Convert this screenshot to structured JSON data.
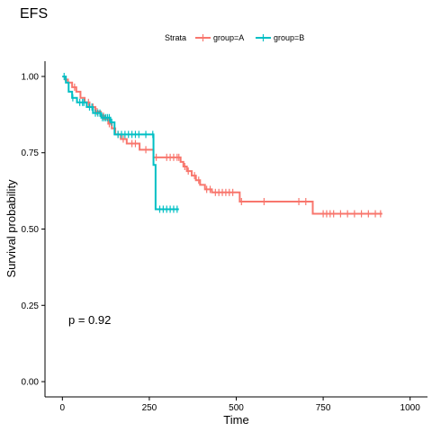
{
  "chart_data": {
    "type": "line",
    "subtype": "kaplan-meier step",
    "title": "EFS",
    "xlabel": "Time",
    "ylabel": "Survival probability",
    "xlim": [
      -50,
      1050
    ],
    "ylim": [
      -0.05,
      1.05
    ],
    "xticks": [
      0,
      250,
      500,
      750,
      1000
    ],
    "yticks": [
      0.0,
      0.25,
      0.5,
      0.75,
      1.0
    ],
    "xtick_labels": [
      "0",
      "250",
      "500",
      "750",
      "1000"
    ],
    "ytick_labels": [
      "0.00",
      "0.25",
      "0.50",
      "0.75",
      "1.00"
    ],
    "grid": false,
    "legend": {
      "position": "top",
      "title": "Strata",
      "entries": [
        "group=A",
        "group=B"
      ]
    },
    "annotation": "p = 0.92",
    "series": [
      {
        "name": "group=A",
        "color": "#F8766D",
        "steps": [
          [
            0,
            1.0
          ],
          [
            8,
            0.99
          ],
          [
            16,
            0.98
          ],
          [
            28,
            0.965
          ],
          [
            40,
            0.95
          ],
          [
            52,
            0.93
          ],
          [
            64,
            0.915
          ],
          [
            78,
            0.9
          ],
          [
            95,
            0.885
          ],
          [
            110,
            0.87
          ],
          [
            122,
            0.86
          ],
          [
            132,
            0.845
          ],
          [
            142,
            0.83
          ],
          [
            152,
            0.81
          ],
          [
            168,
            0.795
          ],
          [
            185,
            0.78
          ],
          [
            222,
            0.76
          ],
          [
            262,
            0.735
          ],
          [
            340,
            0.72
          ],
          [
            348,
            0.705
          ],
          [
            358,
            0.69
          ],
          [
            372,
            0.675
          ],
          [
            384,
            0.66
          ],
          [
            396,
            0.645
          ],
          [
            410,
            0.63
          ],
          [
            430,
            0.62
          ],
          [
            510,
            0.59
          ],
          [
            720,
            0.55
          ],
          [
            920,
            0.55
          ]
        ],
        "censor_times": [
          35,
          75,
          88,
          100,
          118,
          135,
          160,
          175,
          200,
          210,
          240,
          270,
          300,
          310,
          320,
          330,
          335,
          352,
          362,
          380,
          392,
          415,
          425,
          440,
          450,
          460,
          470,
          480,
          490,
          515,
          580,
          680,
          700,
          750,
          760,
          770,
          780,
          800,
          820,
          840,
          860,
          880,
          900,
          915
        ]
      },
      {
        "name": "group=B",
        "color": "#00BFC4",
        "steps": [
          [
            0,
            1.0
          ],
          [
            10,
            0.98
          ],
          [
            18,
            0.95
          ],
          [
            28,
            0.93
          ],
          [
            42,
            0.915
          ],
          [
            70,
            0.9
          ],
          [
            88,
            0.88
          ],
          [
            112,
            0.865
          ],
          [
            138,
            0.85
          ],
          [
            150,
            0.81
          ],
          [
            262,
            0.71
          ],
          [
            268,
            0.565
          ],
          [
            335,
            0.565
          ]
        ],
        "censor_times": [
          5,
          30,
          50,
          58,
          62,
          78,
          85,
          95,
          102,
          108,
          115,
          120,
          125,
          130,
          135,
          142,
          160,
          170,
          180,
          190,
          200,
          210,
          220,
          240,
          260,
          280,
          290,
          300,
          310,
          320,
          330
        ]
      }
    ]
  }
}
